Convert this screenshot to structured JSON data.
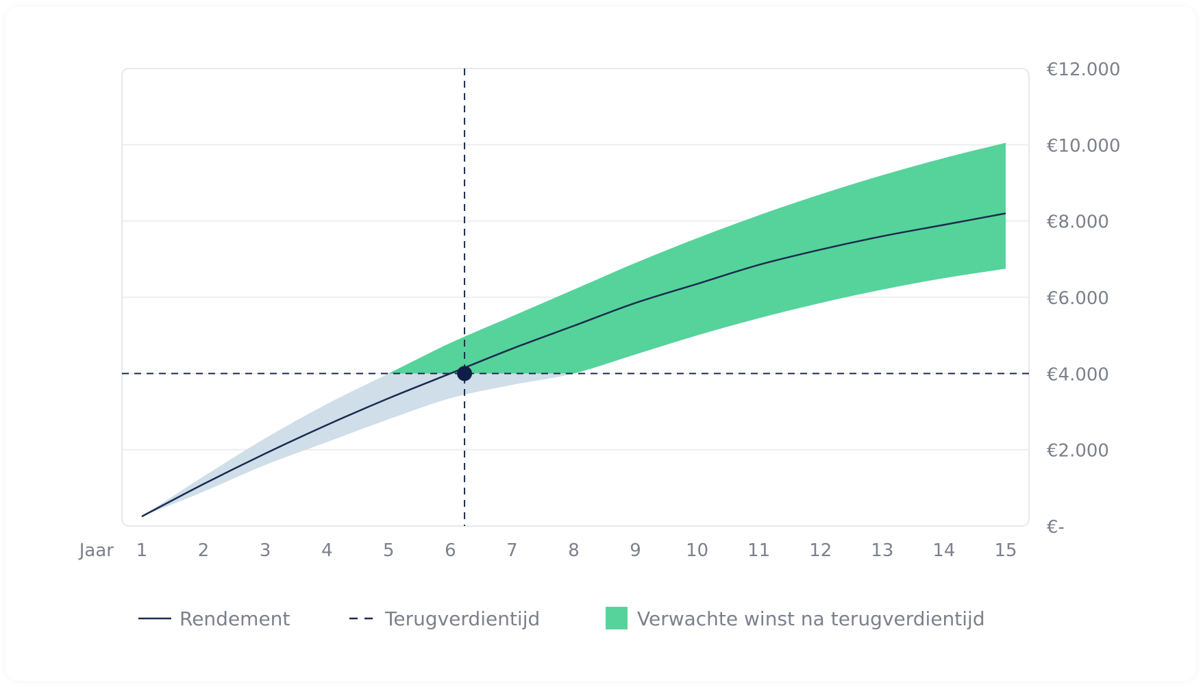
{
  "chart_data": {
    "type": "line",
    "x": [
      1,
      2,
      3,
      4,
      5,
      6,
      7,
      8,
      9,
      10,
      11,
      12,
      13,
      14,
      15
    ],
    "x_tick_labels": [
      "1",
      "2",
      "3",
      "4",
      "5",
      "6",
      "7",
      "8",
      "9",
      "10",
      "11",
      "12",
      "13",
      "14",
      "15"
    ],
    "xlabel": "Jaar",
    "y_tick_labels": [
      "€-",
      "€2.000",
      "€4.000",
      "€6.000",
      "€8.000",
      "€10.000",
      "€12.000"
    ],
    "y_ticks": [
      0,
      2000,
      4000,
      6000,
      8000,
      10000,
      12000
    ],
    "ylim": [
      0,
      12000
    ],
    "xlim": [
      0.85,
      15.05
    ],
    "series": [
      {
        "name": "Rendement",
        "style": "solid",
        "color": "#1b2a4e",
        "x": [
          1,
          2,
          3,
          4,
          5,
          6,
          7,
          8,
          9,
          10,
          11,
          12,
          13,
          14,
          15
        ],
        "values": [
          250,
          1100,
          1900,
          2650,
          3350,
          4000,
          4650,
          5250,
          5850,
          6350,
          6850,
          7250,
          7600,
          7900,
          8200
        ]
      },
      {
        "name": "band-upper",
        "x": [
          1,
          2,
          3,
          4,
          5,
          6,
          7,
          8,
          9,
          10,
          11,
          12,
          13,
          14,
          15
        ],
        "values": [
          250,
          1300,
          2300,
          3200,
          4000,
          4800,
          5500,
          6200,
          6900,
          7550,
          8150,
          8700,
          9200,
          9650,
          10050
        ]
      },
      {
        "name": "band-lower",
        "x": [
          1,
          2,
          3,
          4,
          5,
          6,
          7,
          8,
          9,
          10,
          11,
          12,
          13,
          14,
          15
        ],
        "values": [
          250,
          900,
          1600,
          2200,
          2800,
          3350,
          3700,
          4000,
          4500,
          5000,
          5450,
          5850,
          6200,
          6500,
          6750
        ]
      }
    ],
    "payback": {
      "label": "Terugverdientijd",
      "x": 6.23,
      "y": 4000,
      "color": "#1b2a4e"
    },
    "colors": {
      "band_before": "#cfdee9",
      "band_after": "#55d39b",
      "line": "#1b2a4e",
      "grid": "#eeeeee",
      "axis_text": "#7b808b"
    },
    "legend": [
      {
        "label": "Rendement",
        "kind": "solid-line"
      },
      {
        "label": "Terugverdientijd",
        "kind": "dashed-line"
      },
      {
        "label": "Verwachte winst na terugverdientijd",
        "kind": "swatch"
      }
    ],
    "legend_position": "bottom",
    "grid": true
  }
}
